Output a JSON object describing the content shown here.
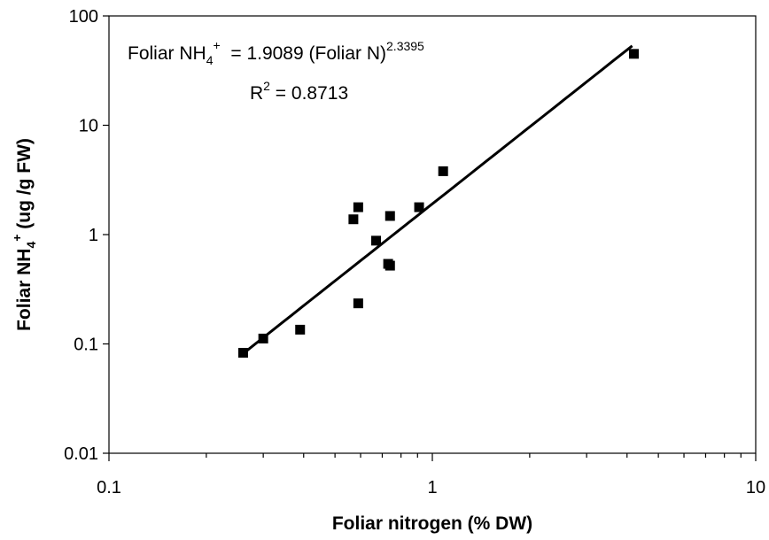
{
  "chart_data": {
    "type": "scatter",
    "x_scale": "log",
    "y_scale": "log",
    "xlim": [
      0.1,
      10
    ],
    "ylim": [
      0.01,
      100
    ],
    "x_ticks": [
      "0.1",
      "1",
      "10"
    ],
    "y_ticks": [
      "0.01",
      "0.1",
      "1",
      "10",
      "100"
    ],
    "xlabel": "Foliar nitrogen (% DW)",
    "ylabel": {
      "main": "Foliar NH",
      "sub": "4",
      "sup": "+",
      "rest": " (ug /g FW)"
    },
    "grid": false,
    "legend": "none",
    "marker_color": "#000000",
    "line_color": "#000000",
    "series": [
      {
        "points": [
          {
            "x": 0.26,
            "y": 0.083
          },
          {
            "x": 0.3,
            "y": 0.112
          },
          {
            "x": 0.39,
            "y": 0.135
          },
          {
            "x": 0.57,
            "y": 1.38
          },
          {
            "x": 0.59,
            "y": 1.78
          },
          {
            "x": 0.59,
            "y": 0.235
          },
          {
            "x": 0.67,
            "y": 0.88
          },
          {
            "x": 0.73,
            "y": 0.54
          },
          {
            "x": 0.74,
            "y": 0.52
          },
          {
            "x": 0.74,
            "y": 1.48
          },
          {
            "x": 0.91,
            "y": 1.78
          },
          {
            "x": 1.08,
            "y": 3.8
          },
          {
            "x": 4.2,
            "y": 45
          }
        ]
      }
    ],
    "trendline": {
      "a": 1.9089,
      "b": 2.3395,
      "x_range": [
        0.26,
        4.15
      ]
    },
    "annotation": {
      "eq_lhs": "Foliar NH",
      "eq_sub": "4",
      "eq_sup": "+",
      "eq_mid": "  = 1.9089 (Foliar N)",
      "eq_exp": "2.3395",
      "r2_base": "R",
      "r2_sup": "2",
      "r2_rest": " = 0.8713"
    }
  }
}
